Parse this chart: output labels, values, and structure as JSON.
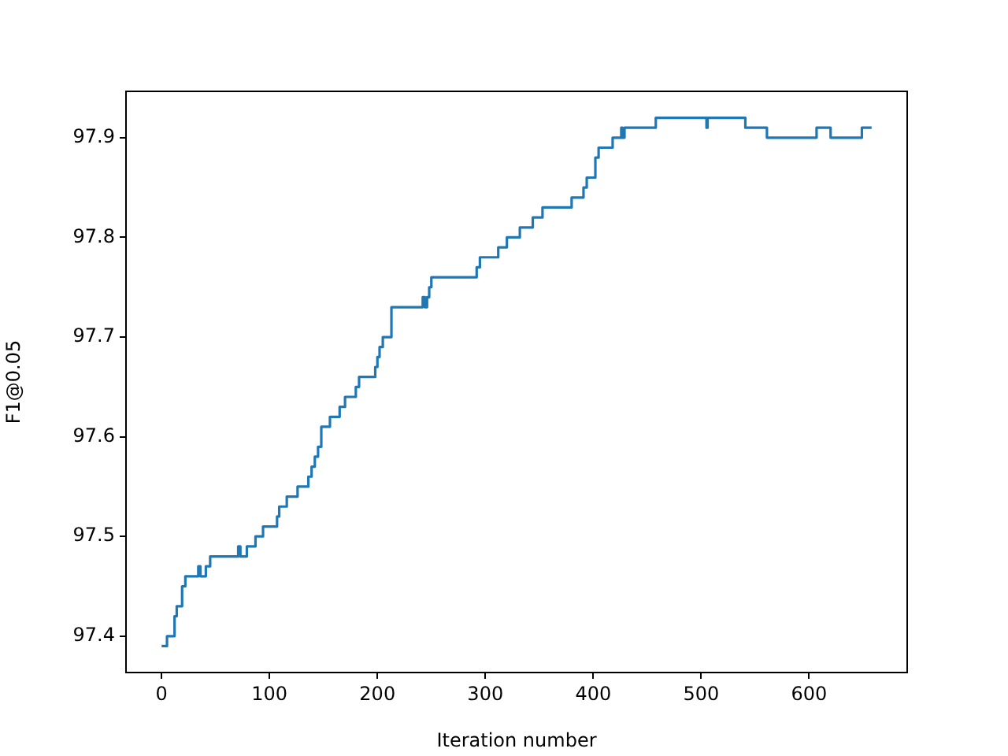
{
  "chart_data": {
    "type": "step",
    "xlabel": "Iteration number",
    "ylabel": "F1@0.05",
    "xlim": [
      -33,
      691
    ],
    "ylim": [
      97.3635,
      97.9465
    ],
    "xticks": [
      0,
      100,
      200,
      300,
      400,
      500,
      600
    ],
    "yticks": [
      97.4,
      97.5,
      97.6,
      97.7,
      97.8,
      97.9
    ],
    "grid": false,
    "legend": false,
    "series": [
      {
        "color": "#1f77b4",
        "x": [
          0,
          5,
          12,
          14,
          19,
          22,
          34,
          36,
          41,
          45,
          71,
          73,
          79,
          87,
          94,
          107,
          109,
          116,
          126,
          136,
          139,
          142,
          145,
          148,
          156,
          165,
          170,
          180,
          183,
          198,
          200,
          202,
          205,
          213,
          242,
          244,
          246,
          248,
          250,
          292,
          295,
          312,
          320,
          332,
          344,
          353,
          380,
          391,
          394,
          402,
          405,
          418,
          426,
          427,
          429,
          458,
          505,
          506,
          541,
          561,
          607,
          620,
          649,
          658
        ],
        "values": [
          97.39,
          97.4,
          97.42,
          97.43,
          97.45,
          97.46,
          97.47,
          97.46,
          97.47,
          97.48,
          97.49,
          97.48,
          97.49,
          97.5,
          97.51,
          97.52,
          97.53,
          97.54,
          97.55,
          97.56,
          97.57,
          97.58,
          97.59,
          97.61,
          97.62,
          97.63,
          97.64,
          97.65,
          97.66,
          97.67,
          97.68,
          97.69,
          97.7,
          97.73,
          97.74,
          97.73,
          97.74,
          97.75,
          97.76,
          97.77,
          97.78,
          97.79,
          97.8,
          97.81,
          97.82,
          97.83,
          97.84,
          97.85,
          97.86,
          97.88,
          97.89,
          97.9,
          97.91,
          97.9,
          97.91,
          97.92,
          97.91,
          97.92,
          97.91,
          97.9,
          97.91,
          97.9,
          97.91,
          97.91
        ]
      }
    ]
  }
}
